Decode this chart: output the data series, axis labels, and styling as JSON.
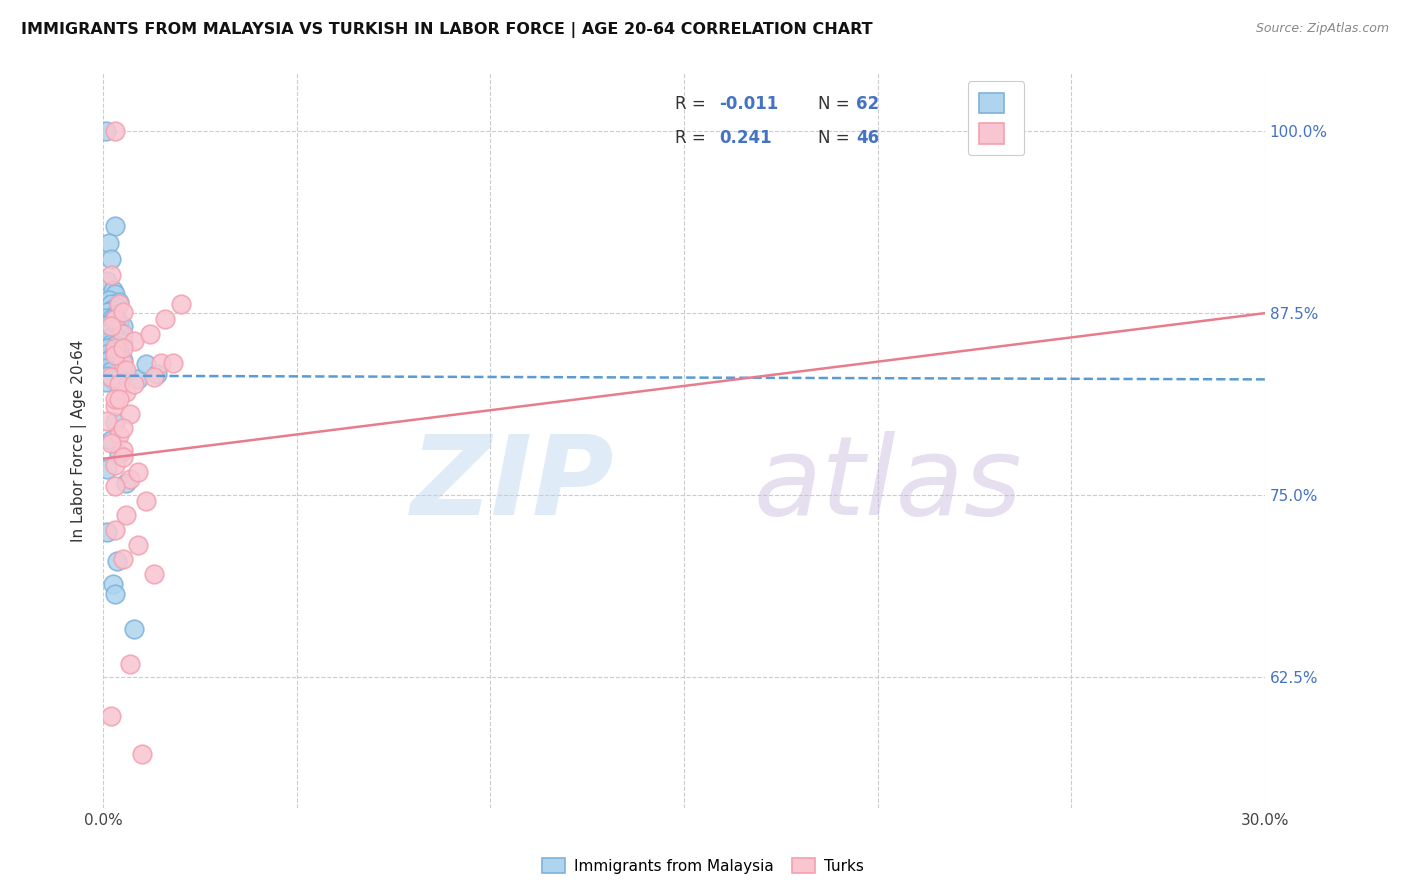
{
  "title": "IMMIGRANTS FROM MALAYSIA VS TURKISH IN LABOR FORCE | AGE 20-64 CORRELATION CHART",
  "source": "Source: ZipAtlas.com",
  "ylabel": "In Labor Force | Age 20-64",
  "xlim": [
    0.0,
    0.3
  ],
  "ylim": [
    0.535,
    1.04
  ],
  "xticks": [
    0.0,
    0.05,
    0.1,
    0.15,
    0.2,
    0.25,
    0.3
  ],
  "xtick_labels": [
    "0.0%",
    "",
    "",
    "",
    "",
    "",
    "30.0%"
  ],
  "ytick_labels": [
    "62.5%",
    "75.0%",
    "87.5%",
    "100.0%"
  ],
  "ytick_positions": [
    0.625,
    0.75,
    0.875,
    1.0
  ],
  "legend_label1": "Immigrants from Malaysia",
  "legend_label2": "Turks",
  "r1": "-0.011",
  "n1": "62",
  "r2": "0.241",
  "n2": "46",
  "blue_face": "#AED4EE",
  "blue_edge": "#7EB2DD",
  "pink_face": "#F9C5D0",
  "pink_edge": "#F4A0B0",
  "blue_line_color": "#5B9BD5",
  "pink_line_color": "#E87C8D",
  "background_color": "#FFFFFF",
  "blue_trend_y0": 0.832,
  "blue_trend_y1": 0.8295,
  "pink_trend_y0": 0.775,
  "pink_trend_y1": 0.875,
  "blue_x": [
    0.0008,
    0.003,
    0.0015,
    0.002,
    0.001,
    0.0025,
    0.003,
    0.0015,
    0.004,
    0.002,
    0.0035,
    0.002,
    0.001,
    0.003,
    0.0008,
    0.002,
    0.0025,
    0.004,
    0.001,
    0.005,
    0.003,
    0.002,
    0.004,
    0.001,
    0.0025,
    0.0035,
    0.0008,
    0.005,
    0.002,
    0.003,
    0.001,
    0.004,
    0.0025,
    0.0008,
    0.0035,
    0.002,
    0.005,
    0.001,
    0.003,
    0.0025,
    0.0008,
    0.004,
    0.002,
    0.006,
    0.001,
    0.0035,
    0.0025,
    0.0008,
    0.005,
    0.003,
    0.002,
    0.004,
    0.001,
    0.006,
    0.009,
    0.011,
    0.014,
    0.0025,
    0.008,
    0.003,
    0.0035,
    0.001
  ],
  "blue_y": [
    1.0,
    0.935,
    0.923,
    0.912,
    0.897,
    0.891,
    0.888,
    0.884,
    0.883,
    0.881,
    0.879,
    0.877,
    0.876,
    0.874,
    0.872,
    0.871,
    0.87,
    0.868,
    0.867,
    0.866,
    0.865,
    0.863,
    0.862,
    0.861,
    0.859,
    0.858,
    0.857,
    0.855,
    0.854,
    0.853,
    0.851,
    0.85,
    0.848,
    0.847,
    0.846,
    0.844,
    0.843,
    0.842,
    0.84,
    0.839,
    0.837,
    0.836,
    0.835,
    0.833,
    0.832,
    0.831,
    0.829,
    0.828,
    0.827,
    0.8,
    0.788,
    0.778,
    0.768,
    0.758,
    0.83,
    0.84,
    0.833,
    0.689,
    0.658,
    0.682,
    0.705,
    0.725
  ],
  "pink_x": [
    0.003,
    0.002,
    0.004,
    0.003,
    0.005,
    0.003,
    0.005,
    0.002,
    0.006,
    0.003,
    0.001,
    0.004,
    0.005,
    0.003,
    0.007,
    0.005,
    0.002,
    0.008,
    0.003,
    0.006,
    0.004,
    0.003,
    0.007,
    0.005,
    0.002,
    0.005,
    0.009,
    0.003,
    0.011,
    0.006,
    0.003,
    0.009,
    0.005,
    0.013,
    0.008,
    0.004,
    0.016,
    0.012,
    0.005,
    0.02,
    0.015,
    0.007,
    0.002,
    0.01,
    0.018,
    0.013
  ],
  "pink_y": [
    1.0,
    0.901,
    0.881,
    0.871,
    0.861,
    0.851,
    0.841,
    0.831,
    0.821,
    0.811,
    0.801,
    0.791,
    0.781,
    0.771,
    0.761,
    0.876,
    0.866,
    0.856,
    0.846,
    0.836,
    0.826,
    0.816,
    0.806,
    0.796,
    0.786,
    0.776,
    0.766,
    0.756,
    0.746,
    0.736,
    0.726,
    0.716,
    0.706,
    0.696,
    0.826,
    0.816,
    0.871,
    0.861,
    0.851,
    0.881,
    0.841,
    0.634,
    0.598,
    0.572,
    0.841,
    0.831
  ]
}
